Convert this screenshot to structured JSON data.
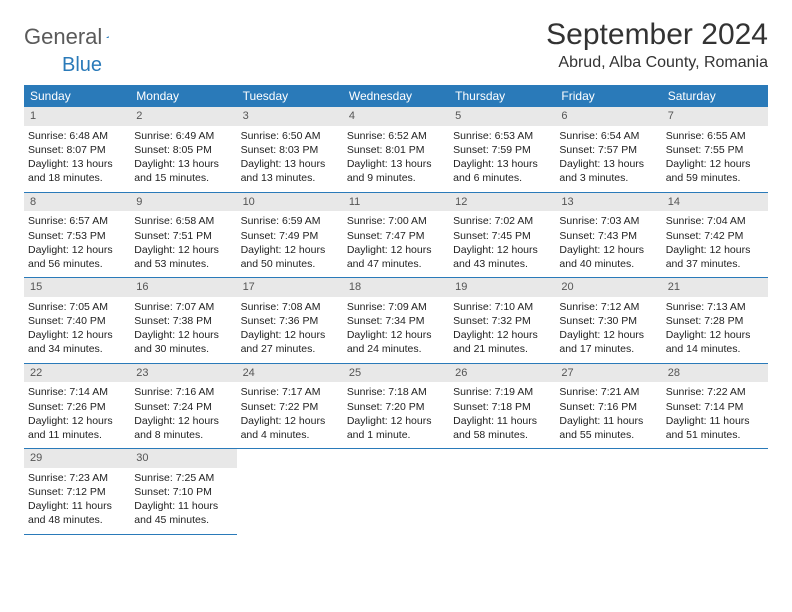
{
  "logo": {
    "text1": "General",
    "text2": "Blue"
  },
  "title": "September 2024",
  "location": "Abrud, Alba County, Romania",
  "colors": {
    "accent": "#2a7ab9",
    "dayBg": "#e8e8e8",
    "text": "#333333",
    "bg": "#ffffff"
  },
  "dayNames": [
    "Sunday",
    "Monday",
    "Tuesday",
    "Wednesday",
    "Thursday",
    "Friday",
    "Saturday"
  ],
  "weeks": [
    [
      {
        "n": "1",
        "sr": "Sunrise: 6:48 AM",
        "ss": "Sunset: 8:07 PM",
        "dl1": "Daylight: 13 hours",
        "dl2": "and 18 minutes."
      },
      {
        "n": "2",
        "sr": "Sunrise: 6:49 AM",
        "ss": "Sunset: 8:05 PM",
        "dl1": "Daylight: 13 hours",
        "dl2": "and 15 minutes."
      },
      {
        "n": "3",
        "sr": "Sunrise: 6:50 AM",
        "ss": "Sunset: 8:03 PM",
        "dl1": "Daylight: 13 hours",
        "dl2": "and 13 minutes."
      },
      {
        "n": "4",
        "sr": "Sunrise: 6:52 AM",
        "ss": "Sunset: 8:01 PM",
        "dl1": "Daylight: 13 hours",
        "dl2": "and 9 minutes."
      },
      {
        "n": "5",
        "sr": "Sunrise: 6:53 AM",
        "ss": "Sunset: 7:59 PM",
        "dl1": "Daylight: 13 hours",
        "dl2": "and 6 minutes."
      },
      {
        "n": "6",
        "sr": "Sunrise: 6:54 AM",
        "ss": "Sunset: 7:57 PM",
        "dl1": "Daylight: 13 hours",
        "dl2": "and 3 minutes."
      },
      {
        "n": "7",
        "sr": "Sunrise: 6:55 AM",
        "ss": "Sunset: 7:55 PM",
        "dl1": "Daylight: 12 hours",
        "dl2": "and 59 minutes."
      }
    ],
    [
      {
        "n": "8",
        "sr": "Sunrise: 6:57 AM",
        "ss": "Sunset: 7:53 PM",
        "dl1": "Daylight: 12 hours",
        "dl2": "and 56 minutes."
      },
      {
        "n": "9",
        "sr": "Sunrise: 6:58 AM",
        "ss": "Sunset: 7:51 PM",
        "dl1": "Daylight: 12 hours",
        "dl2": "and 53 minutes."
      },
      {
        "n": "10",
        "sr": "Sunrise: 6:59 AM",
        "ss": "Sunset: 7:49 PM",
        "dl1": "Daylight: 12 hours",
        "dl2": "and 50 minutes."
      },
      {
        "n": "11",
        "sr": "Sunrise: 7:00 AM",
        "ss": "Sunset: 7:47 PM",
        "dl1": "Daylight: 12 hours",
        "dl2": "and 47 minutes."
      },
      {
        "n": "12",
        "sr": "Sunrise: 7:02 AM",
        "ss": "Sunset: 7:45 PM",
        "dl1": "Daylight: 12 hours",
        "dl2": "and 43 minutes."
      },
      {
        "n": "13",
        "sr": "Sunrise: 7:03 AM",
        "ss": "Sunset: 7:43 PM",
        "dl1": "Daylight: 12 hours",
        "dl2": "and 40 minutes."
      },
      {
        "n": "14",
        "sr": "Sunrise: 7:04 AM",
        "ss": "Sunset: 7:42 PM",
        "dl1": "Daylight: 12 hours",
        "dl2": "and 37 minutes."
      }
    ],
    [
      {
        "n": "15",
        "sr": "Sunrise: 7:05 AM",
        "ss": "Sunset: 7:40 PM",
        "dl1": "Daylight: 12 hours",
        "dl2": "and 34 minutes."
      },
      {
        "n": "16",
        "sr": "Sunrise: 7:07 AM",
        "ss": "Sunset: 7:38 PM",
        "dl1": "Daylight: 12 hours",
        "dl2": "and 30 minutes."
      },
      {
        "n": "17",
        "sr": "Sunrise: 7:08 AM",
        "ss": "Sunset: 7:36 PM",
        "dl1": "Daylight: 12 hours",
        "dl2": "and 27 minutes."
      },
      {
        "n": "18",
        "sr": "Sunrise: 7:09 AM",
        "ss": "Sunset: 7:34 PM",
        "dl1": "Daylight: 12 hours",
        "dl2": "and 24 minutes."
      },
      {
        "n": "19",
        "sr": "Sunrise: 7:10 AM",
        "ss": "Sunset: 7:32 PM",
        "dl1": "Daylight: 12 hours",
        "dl2": "and 21 minutes."
      },
      {
        "n": "20",
        "sr": "Sunrise: 7:12 AM",
        "ss": "Sunset: 7:30 PM",
        "dl1": "Daylight: 12 hours",
        "dl2": "and 17 minutes."
      },
      {
        "n": "21",
        "sr": "Sunrise: 7:13 AM",
        "ss": "Sunset: 7:28 PM",
        "dl1": "Daylight: 12 hours",
        "dl2": "and 14 minutes."
      }
    ],
    [
      {
        "n": "22",
        "sr": "Sunrise: 7:14 AM",
        "ss": "Sunset: 7:26 PM",
        "dl1": "Daylight: 12 hours",
        "dl2": "and 11 minutes."
      },
      {
        "n": "23",
        "sr": "Sunrise: 7:16 AM",
        "ss": "Sunset: 7:24 PM",
        "dl1": "Daylight: 12 hours",
        "dl2": "and 8 minutes."
      },
      {
        "n": "24",
        "sr": "Sunrise: 7:17 AM",
        "ss": "Sunset: 7:22 PM",
        "dl1": "Daylight: 12 hours",
        "dl2": "and 4 minutes."
      },
      {
        "n": "25",
        "sr": "Sunrise: 7:18 AM",
        "ss": "Sunset: 7:20 PM",
        "dl1": "Daylight: 12 hours",
        "dl2": "and 1 minute."
      },
      {
        "n": "26",
        "sr": "Sunrise: 7:19 AM",
        "ss": "Sunset: 7:18 PM",
        "dl1": "Daylight: 11 hours",
        "dl2": "and 58 minutes."
      },
      {
        "n": "27",
        "sr": "Sunrise: 7:21 AM",
        "ss": "Sunset: 7:16 PM",
        "dl1": "Daylight: 11 hours",
        "dl2": "and 55 minutes."
      },
      {
        "n": "28",
        "sr": "Sunrise: 7:22 AM",
        "ss": "Sunset: 7:14 PM",
        "dl1": "Daylight: 11 hours",
        "dl2": "and 51 minutes."
      }
    ],
    [
      {
        "n": "29",
        "sr": "Sunrise: 7:23 AM",
        "ss": "Sunset: 7:12 PM",
        "dl1": "Daylight: 11 hours",
        "dl2": "and 48 minutes."
      },
      {
        "n": "30",
        "sr": "Sunrise: 7:25 AM",
        "ss": "Sunset: 7:10 PM",
        "dl1": "Daylight: 11 hours",
        "dl2": "and 45 minutes."
      },
      null,
      null,
      null,
      null,
      null
    ]
  ]
}
